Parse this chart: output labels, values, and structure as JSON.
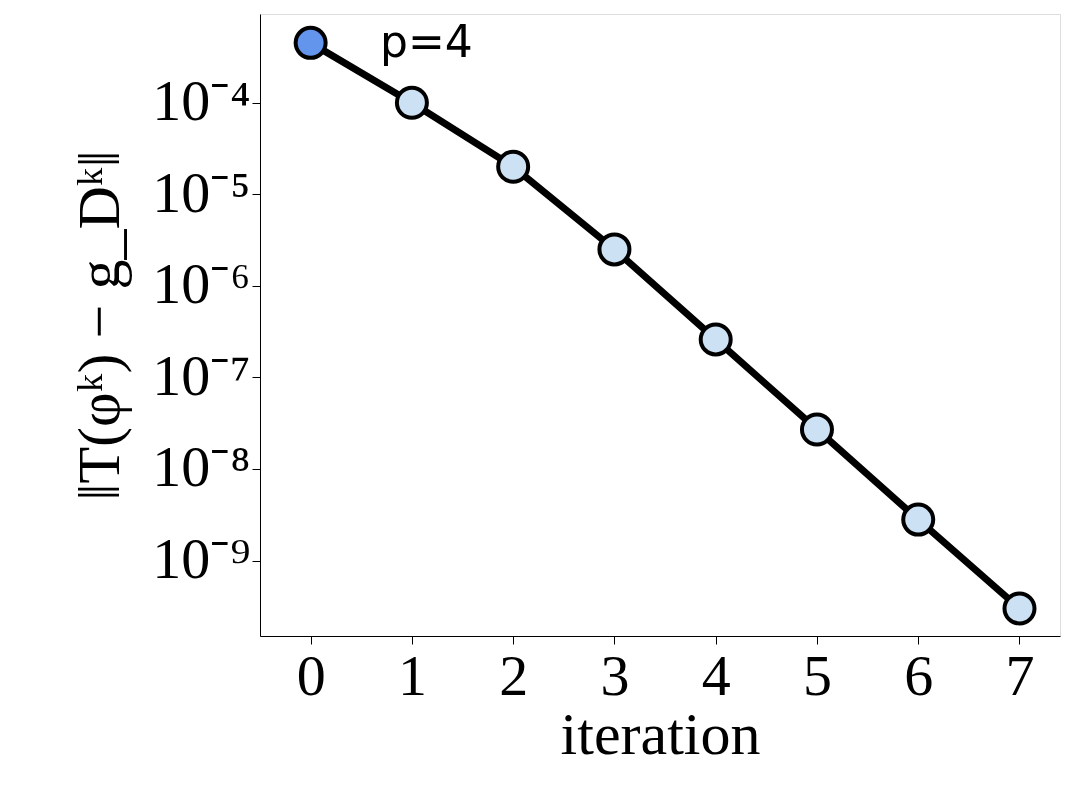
{
  "chart_data": {
    "type": "line",
    "xlabel": "iteration",
    "ylabel": "‖T(φᵏ) − g_Dᵏ‖",
    "annotations": [
      "p=4"
    ],
    "x": [
      0,
      1,
      2,
      3,
      4,
      5,
      6,
      7
    ],
    "series": [
      {
        "color": "#000000",
        "values": [
          0.00045,
          0.0001,
          2e-05,
          2.5e-06,
          2.6e-07,
          2.7e-08,
          2.8e-09,
          3e-10
        ],
        "colors": [
          "#6495ed",
          "#cde1f5",
          "#cde1f5",
          "#cde1f5",
          "#cde1f5",
          "#cde1f5",
          "#cde1f5",
          "#cde1f5"
        ]
      }
    ],
    "log": "y",
    "marker": "circle",
    "line_style": "solid",
    "grid": false,
    "xlim": [
      -0.5,
      7.4
    ],
    "xticks": [
      0,
      1,
      2,
      3,
      4,
      5,
      6,
      7
    ],
    "ylim": [
      1.5e-10,
      0.00093
    ],
    "yticks": [
      {
        "value": 0.0001,
        "label": "10⁻⁴"
      },
      {
        "value": 1e-05,
        "label": "10⁻⁵"
      },
      {
        "value": 1e-06,
        "label": "10⁻⁶"
      },
      {
        "value": 1e-07,
        "label": "10⁻⁷"
      },
      {
        "value": 1e-08,
        "label": "10⁻⁸"
      },
      {
        "value": 1e-09,
        "label": "10⁻⁹"
      }
    ]
  }
}
